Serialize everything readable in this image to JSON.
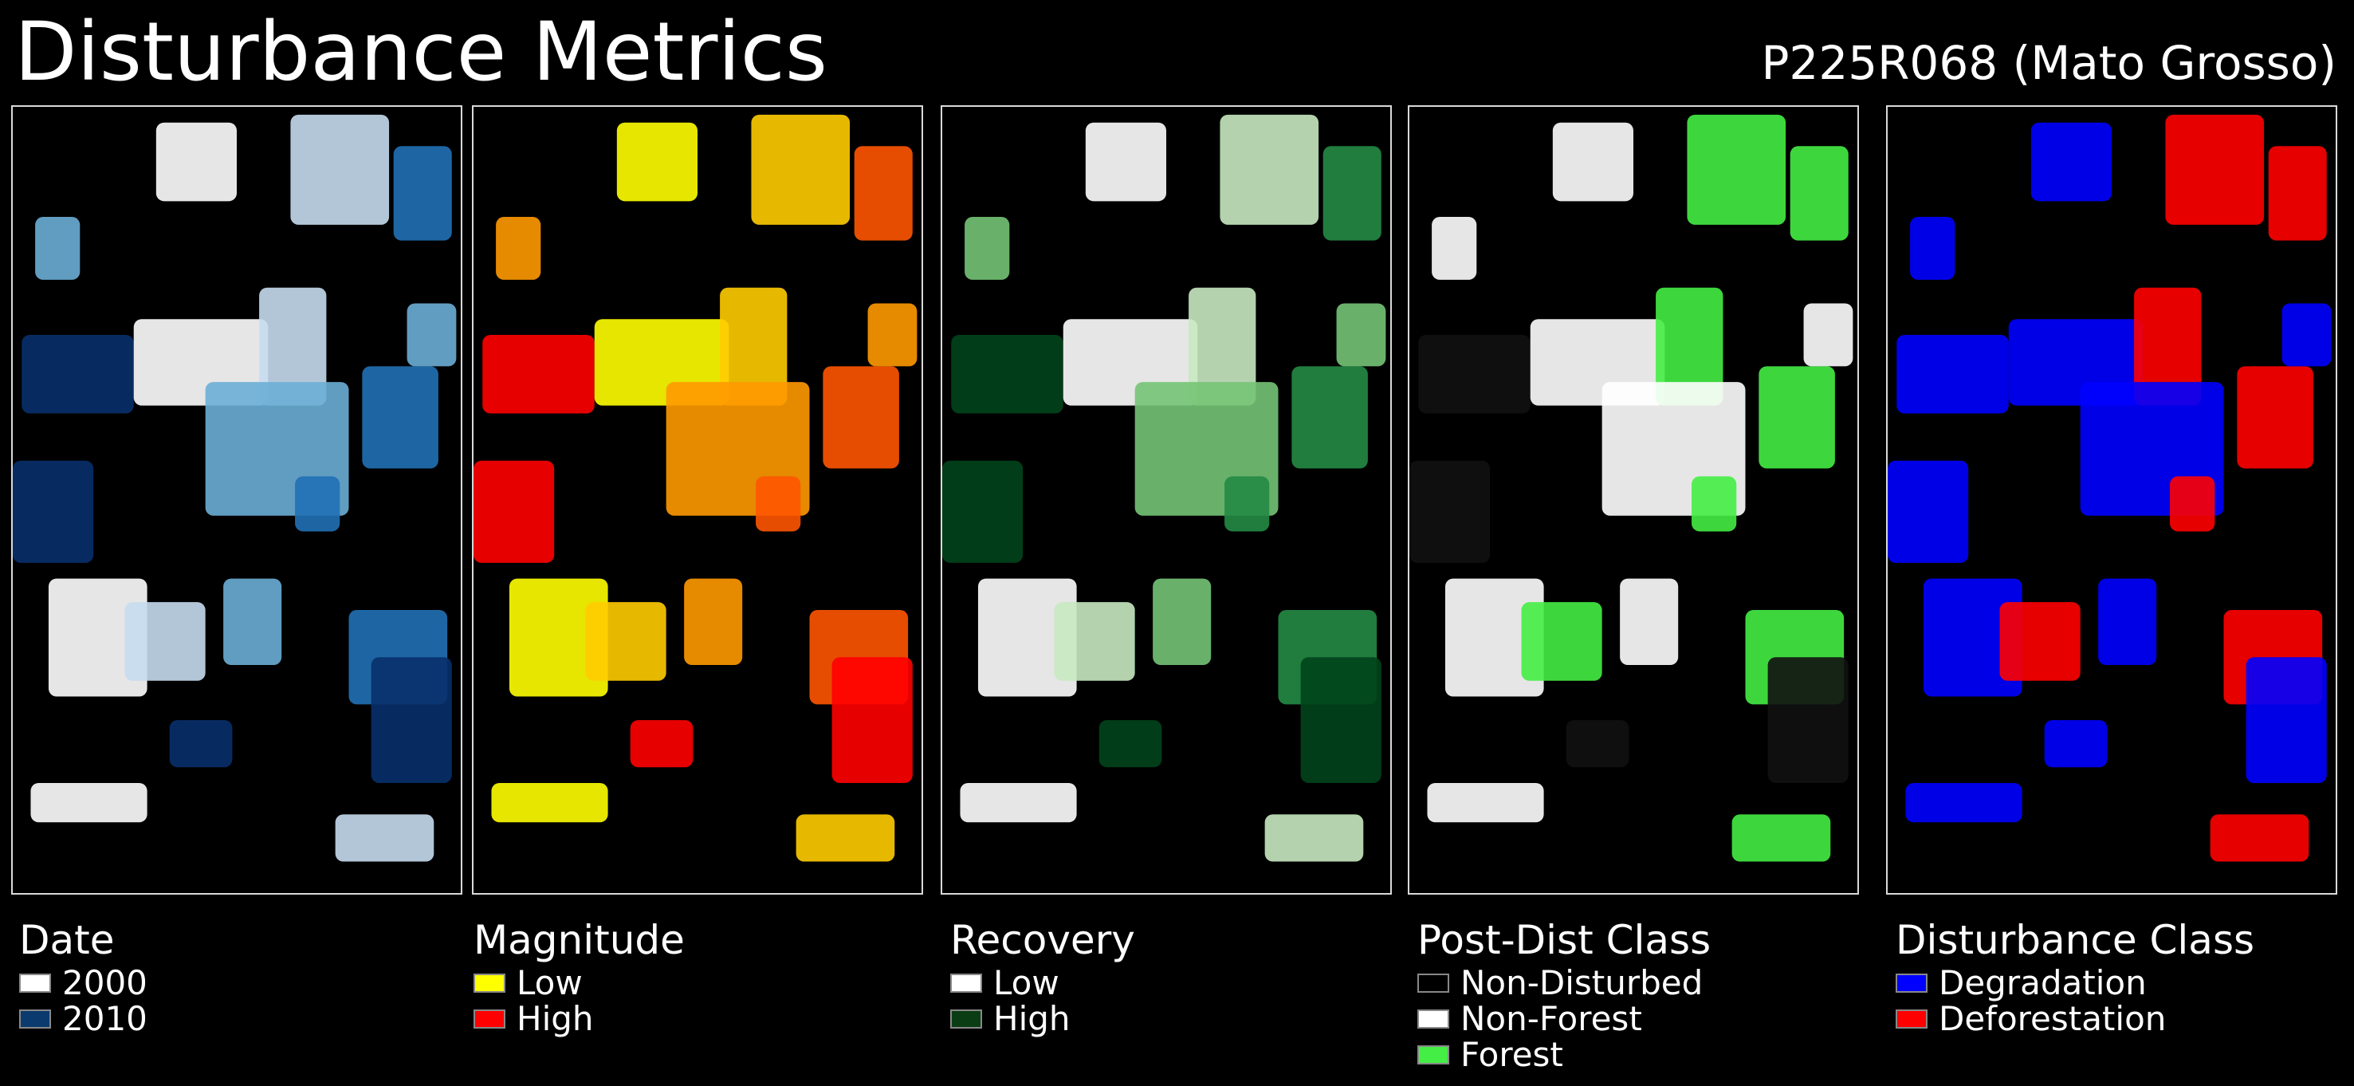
{
  "header": {
    "title": "Disturbance Metrics",
    "subtitle": "P225R068 (Mato Grosso)"
  },
  "panels": [
    {
      "title": "Date",
      "colors": [
        "#ffffff",
        "#c6dbef",
        "#6baed6",
        "#2171b5",
        "#08306b"
      ],
      "legend": [
        {
          "label": "2000",
          "color": "#ffffff"
        },
        {
          "label": "2010",
          "color": "#0b3a6e"
        }
      ]
    },
    {
      "title": "Magnitude",
      "colors": [
        "#ffff00",
        "#ffcc00",
        "#ff9900",
        "#ff5500",
        "#ff0000"
      ],
      "legend": [
        {
          "label": "Low",
          "color": "#ffff00"
        },
        {
          "label": "High",
          "color": "#ff0000"
        }
      ]
    },
    {
      "title": "Recovery",
      "colors": [
        "#ffffff",
        "#c7e9c0",
        "#74c476",
        "#238b45",
        "#00441b"
      ],
      "legend": [
        {
          "label": "Low",
          "color": "#ffffff"
        },
        {
          "label": "High",
          "color": "#0b3d14"
        }
      ]
    },
    {
      "title": "Post-Dist Class",
      "colors": [
        "#ffffff",
        "#44ee44",
        "#ffffff",
        "#44ee44",
        "#111111"
      ],
      "legend": [
        {
          "label": "Non-Disturbed",
          "color": "#000000"
        },
        {
          "label": "Non-Forest",
          "color": "#ffffff"
        },
        {
          "label": "Forest",
          "color": "#44ee44"
        }
      ]
    },
    {
      "title": "Disturbance Class",
      "colors": [
        "#0000ff",
        "#ff0000",
        "#0000ff",
        "#ff0000",
        "#0000ff"
      ],
      "legend": [
        {
          "label": "Degradation",
          "color": "#0000ff"
        },
        {
          "label": "Deforestation",
          "color": "#ff0000"
        }
      ]
    }
  ]
}
